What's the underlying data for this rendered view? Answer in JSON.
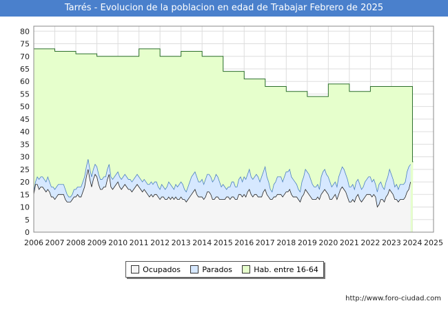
{
  "chart_data": {
    "type": "area",
    "title": "Tarrés - Evolucion de la poblacion en edad de Trabajar Febrero de 2025",
    "xlabel": "",
    "ylabel": "",
    "xlim": [
      2006,
      2025
    ],
    "ylim": [
      0,
      82
    ],
    "y_ticks": [
      0,
      5,
      10,
      15,
      20,
      25,
      30,
      35,
      40,
      45,
      50,
      55,
      60,
      65,
      70,
      75,
      80
    ],
    "x_ticks": [
      2006,
      2007,
      2008,
      2009,
      2010,
      2011,
      2012,
      2013,
      2014,
      2015,
      2016,
      2017,
      2018,
      2019,
      2020,
      2021,
      2022,
      2023,
      2024,
      2025
    ],
    "grid": true,
    "series": [
      {
        "name": "Hab. entre 16-64",
        "color": "#e6ffcc",
        "stroke": "#2b6e2b",
        "points": [
          [
            2006,
            73
          ],
          [
            2007,
            72
          ],
          [
            2008,
            71
          ],
          [
            2009,
            70
          ],
          [
            2010,
            70
          ],
          [
            2011,
            73
          ],
          [
            2012,
            70
          ],
          [
            2013,
            72
          ],
          [
            2014,
            70
          ],
          [
            2015,
            64
          ],
          [
            2016,
            61
          ],
          [
            2017,
            58
          ],
          [
            2018,
            56
          ],
          [
            2019,
            54
          ],
          [
            2020,
            59
          ],
          [
            2021,
            56
          ],
          [
            2022,
            58
          ],
          [
            2023,
            58
          ],
          [
            2024,
            28
          ]
        ]
      },
      {
        "name": "Parados",
        "color": "#d6e8ff",
        "stroke": "#4a7fc0",
        "x_start": 2006,
        "x_step": 0.0833,
        "values": [
          16,
          20,
          22,
          21,
          22,
          22,
          21,
          20,
          22,
          20,
          18,
          18,
          17,
          18,
          19,
          19,
          19,
          19,
          17,
          15,
          14,
          14,
          15,
          17,
          17,
          18,
          18,
          18,
          20,
          22,
          26,
          29,
          25,
          22,
          25,
          27,
          26,
          23,
          21,
          21,
          22,
          22,
          25,
          27,
          22,
          21,
          22,
          23,
          24,
          22,
          21,
          22,
          23,
          22,
          21,
          21,
          20,
          21,
          22,
          23,
          22,
          21,
          20,
          21,
          20,
          19,
          19,
          20,
          19,
          20,
          20,
          18,
          17,
          19,
          18,
          17,
          18,
          20,
          19,
          18,
          17,
          19,
          18,
          19,
          20,
          19,
          17,
          16,
          18,
          20,
          22,
          23,
          24,
          22,
          20,
          20,
          21,
          19,
          21,
          23,
          23,
          22,
          20,
          21,
          23,
          22,
          20,
          18,
          19,
          18,
          17,
          18,
          18,
          20,
          20,
          18,
          18,
          21,
          22,
          20,
          22,
          21,
          23,
          25,
          22,
          21,
          22,
          23,
          22,
          20,
          22,
          24,
          26,
          22,
          20,
          17,
          16,
          19,
          20,
          22,
          22,
          22,
          20,
          22,
          24,
          24,
          25,
          22,
          21,
          20,
          19,
          17,
          16,
          20,
          22,
          25,
          24,
          23,
          21,
          19,
          18,
          18,
          19,
          17,
          22,
          24,
          25,
          23,
          22,
          20,
          18,
          19,
          20,
          18,
          22,
          24,
          26,
          25,
          23,
          21,
          18,
          18,
          19,
          17,
          20,
          21,
          19,
          17,
          18,
          20,
          21,
          22,
          22,
          20,
          21,
          19,
          16,
          19,
          20,
          18,
          17,
          20,
          22,
          25,
          23,
          21,
          18,
          19,
          17,
          19,
          19,
          19,
          20,
          24,
          26,
          27
        ]
      },
      {
        "name": "Ocupados",
        "color": "#f5f5f5",
        "stroke": "#222222",
        "x_start": 2006,
        "x_step": 0.0833,
        "values": [
          15,
          19,
          19,
          17,
          18,
          18,
          17,
          16,
          17,
          16,
          14,
          14,
          13,
          14,
          15,
          15,
          15,
          15,
          13,
          12,
          12,
          12,
          13,
          14,
          14,
          15,
          14,
          14,
          16,
          18,
          22,
          25,
          21,
          18,
          21,
          23,
          22,
          19,
          17,
          17,
          18,
          18,
          21,
          23,
          18,
          17,
          18,
          19,
          20,
          18,
          17,
          18,
          19,
          18,
          17,
          17,
          16,
          17,
          18,
          19,
          18,
          17,
          16,
          17,
          16,
          15,
          14,
          15,
          14,
          15,
          15,
          14,
          13,
          14,
          14,
          13,
          13,
          14,
          13,
          14,
          13,
          14,
          13,
          13,
          14,
          13,
          13,
          12,
          13,
          14,
          15,
          16,
          17,
          15,
          14,
          14,
          14,
          13,
          14,
          16,
          16,
          15,
          13,
          13,
          14,
          14,
          13,
          13,
          13,
          13,
          14,
          14,
          13,
          14,
          14,
          13,
          13,
          15,
          15,
          14,
          15,
          14,
          16,
          17,
          15,
          14,
          15,
          15,
          14,
          14,
          14,
          16,
          17,
          15,
          14,
          13,
          13,
          14,
          14,
          15,
          15,
          15,
          14,
          15,
          16,
          16,
          17,
          15,
          14,
          14,
          14,
          13,
          12,
          14,
          15,
          17,
          16,
          15,
          14,
          13,
          13,
          13,
          14,
          13,
          15,
          16,
          17,
          16,
          15,
          13,
          13,
          14,
          15,
          13,
          15,
          17,
          18,
          17,
          16,
          14,
          12,
          12,
          13,
          12,
          14,
          15,
          13,
          12,
          13,
          14,
          15,
          15,
          15,
          14,
          15,
          14,
          10,
          11,
          13,
          13,
          12,
          14,
          15,
          17,
          16,
          15,
          13,
          13,
          12,
          13,
          13,
          13,
          14,
          16,
          17,
          20
        ]
      }
    ],
    "legend_labels": [
      "Ocupados",
      "Parados",
      "Hab. entre 16-64"
    ],
    "source_text": "http://www.foro-ciudad.com"
  }
}
